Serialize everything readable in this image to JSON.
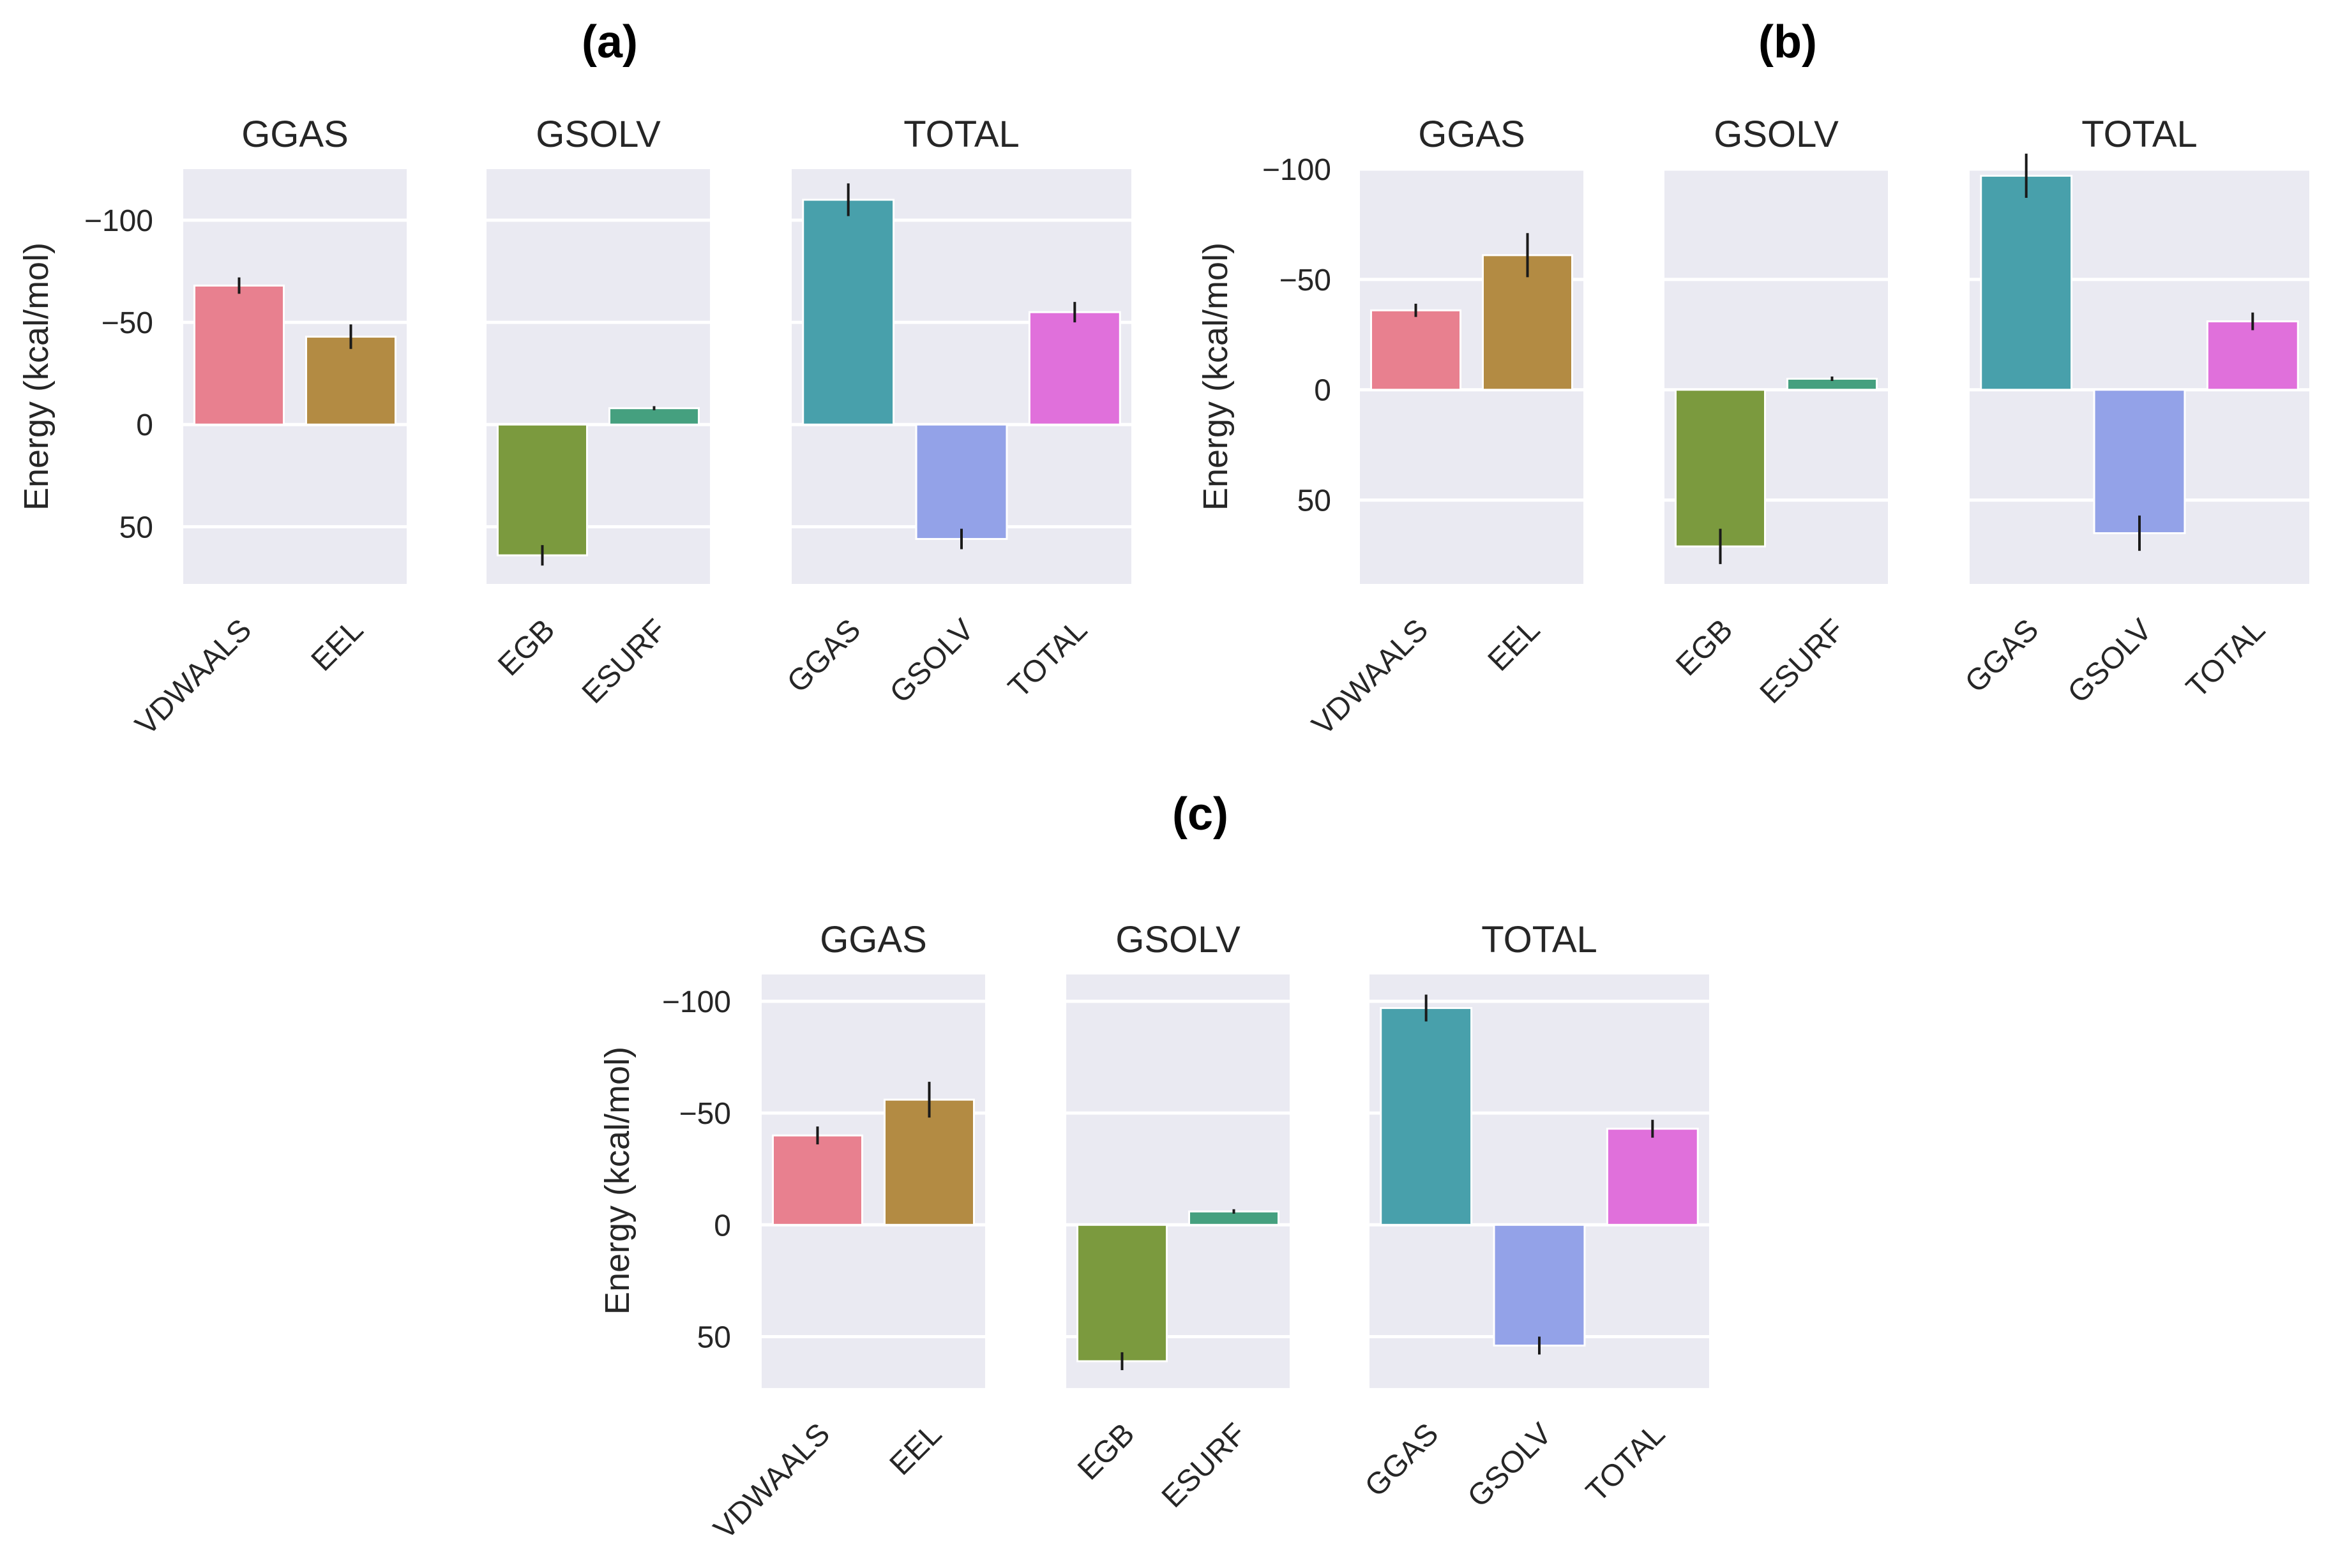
{
  "colors": {
    "VDWAALS": "#e8808f",
    "EEL": "#b38b43",
    "EGB": "#7b9a3e",
    "ESURF": "#45a07f",
    "GGAS": "#48a0ab",
    "GSOLV": "#93a2e8",
    "TOTAL": "#e070db"
  },
  "chart_data": [
    {
      "type": "bar",
      "panel": "(a)",
      "ylabel": "Energy (kcal/mol)",
      "ylim": [
        -125,
        78
      ],
      "inverted_y": true,
      "yticks": [
        -100,
        -50,
        0,
        50
      ],
      "ytick_labels": [
        "−100",
        "−50",
        "0",
        "50"
      ],
      "subplots": [
        {
          "title": "GGAS",
          "categories": [
            "VDWAALS",
            "EEL"
          ],
          "values": [
            -68,
            -43
          ],
          "errors": [
            4,
            6
          ]
        },
        {
          "title": "GSOLV",
          "categories": [
            "EGB",
            "ESURF"
          ],
          "values": [
            64,
            -8
          ],
          "errors": [
            5,
            1
          ]
        },
        {
          "title": "TOTAL",
          "categories": [
            "GGAS",
            "GSOLV",
            "TOTAL"
          ],
          "values": [
            -110,
            56,
            -55
          ],
          "errors": [
            8,
            5,
            5
          ]
        }
      ]
    },
    {
      "type": "bar",
      "panel": "(b)",
      "ylabel": "Energy (kcal/mol)",
      "ylim": [
        -100,
        88
      ],
      "inverted_y": true,
      "yticks": [
        -100,
        -50,
        0,
        50
      ],
      "ytick_labels": [
        "−100",
        "−50",
        "0",
        "50"
      ],
      "subplots": [
        {
          "title": "GGAS",
          "categories": [
            "VDWAALS",
            "EEL"
          ],
          "values": [
            -36,
            -61
          ],
          "errors": [
            3,
            10
          ]
        },
        {
          "title": "GSOLV",
          "categories": [
            "EGB",
            "ESURF"
          ],
          "values": [
            71,
            -5
          ],
          "errors": [
            8,
            1
          ]
        },
        {
          "title": "TOTAL",
          "categories": [
            "GGAS",
            "GSOLV",
            "TOTAL"
          ],
          "values": [
            -97,
            65,
            -31
          ],
          "errors": [
            10,
            8,
            4
          ]
        }
      ]
    },
    {
      "type": "bar",
      "panel": "(c)",
      "ylabel": "Energy (kcal/mol)",
      "ylim": [
        -112,
        73
      ],
      "inverted_y": true,
      "yticks": [
        -100,
        -50,
        0,
        50
      ],
      "ytick_labels": [
        "−100",
        "−50",
        "0",
        "50"
      ],
      "subplots": [
        {
          "title": "GGAS",
          "categories": [
            "VDWAALS",
            "EEL"
          ],
          "values": [
            -40,
            -56
          ],
          "errors": [
            4,
            8
          ]
        },
        {
          "title": "GSOLV",
          "categories": [
            "EGB",
            "ESURF"
          ],
          "values": [
            61,
            -6
          ],
          "errors": [
            4,
            1
          ]
        },
        {
          "title": "TOTAL",
          "categories": [
            "GGAS",
            "GSOLV",
            "TOTAL"
          ],
          "values": [
            -97,
            54,
            -43
          ],
          "errors": [
            6,
            4,
            4
          ]
        }
      ]
    }
  ]
}
